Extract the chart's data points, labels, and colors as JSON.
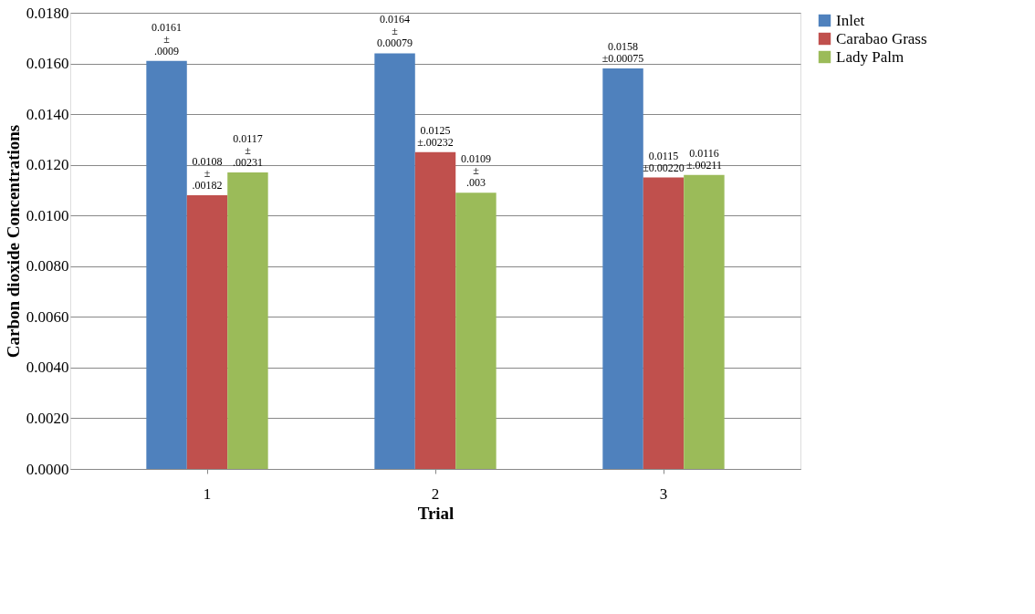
{
  "chart_data": {
    "type": "bar",
    "xlabel": "Trial",
    "ylabel": "Carbon dioxide Concentrations",
    "categories": [
      "1",
      "2",
      "3"
    ],
    "series": [
      {
        "name": "Inlet",
        "color": "#4f81bd",
        "values": [
          0.0161,
          0.0164,
          0.0158
        ],
        "value_labels": [
          "0.0161 ± .0009",
          "0.0164 ± 0.00079",
          "0.0158 ±0.00075"
        ]
      },
      {
        "name": "Carabao Grass",
        "color": "#c0504d",
        "values": [
          0.0108,
          0.0125,
          0.0115
        ],
        "value_labels": [
          "0.0108 ± .00182",
          "0.0125 ±.00232",
          "0.0115 ±0.00220"
        ]
      },
      {
        "name": "Lady Palm",
        "color": "#9bbb59",
        "values": [
          0.0117,
          0.0109,
          0.0116
        ],
        "value_labels": [
          "0.0117 ± .00231",
          "0.0109 ± .003",
          "0.0116 ±.00211"
        ]
      }
    ],
    "ylim": [
      0,
      0.018
    ],
    "yticks": [
      {
        "value": 0,
        "label": "0.0000"
      },
      {
        "value": 0.002,
        "label": "0.0020"
      },
      {
        "value": 0.004,
        "label": "0.0040"
      },
      {
        "value": 0.006,
        "label": "0.0060"
      },
      {
        "value": 0.008,
        "label": "0.0080"
      },
      {
        "value": 0.01,
        "label": "0.0100"
      },
      {
        "value": 0.012,
        "label": "0.0120"
      },
      {
        "value": 0.014,
        "label": "0.0140"
      },
      {
        "value": 0.016,
        "label": "0.0160"
      },
      {
        "value": 0.018,
        "label": "0.0180"
      }
    ],
    "grid": "y",
    "legend": "right"
  }
}
